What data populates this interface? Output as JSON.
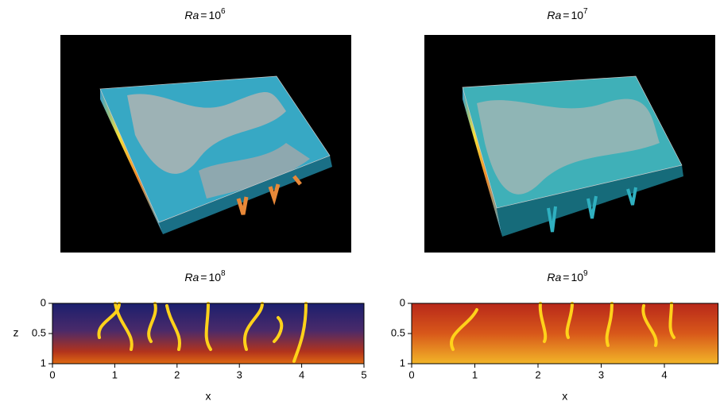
{
  "panels": [
    {
      "title": {
        "var": "Ra",
        "rel": "=",
        "base": "10",
        "exp": "6"
      }
    },
    {
      "title": {
        "var": "Ra",
        "rel": "=",
        "base": "10",
        "exp": "7"
      }
    },
    {
      "title": {
        "var": "Ra",
        "rel": "=",
        "base": "10",
        "exp": "8"
      },
      "xlabel": "x",
      "ylabel": "z",
      "xlim": [
        0,
        5
      ],
      "ylim": [
        0,
        1
      ],
      "xticks": [
        0,
        1,
        2,
        3,
        4,
        5
      ],
      "yticks": [
        0,
        0.5,
        1
      ]
    },
    {
      "title": {
        "var": "Ra",
        "rel": "=",
        "base": "10",
        "exp": "9"
      },
      "xlabel": "x",
      "xlim": [
        0,
        4.85
      ],
      "ylim": [
        0,
        1
      ],
      "xticks": [
        0,
        1,
        2,
        3,
        4
      ],
      "yticks": [
        0,
        0.5,
        1
      ]
    }
  ]
}
